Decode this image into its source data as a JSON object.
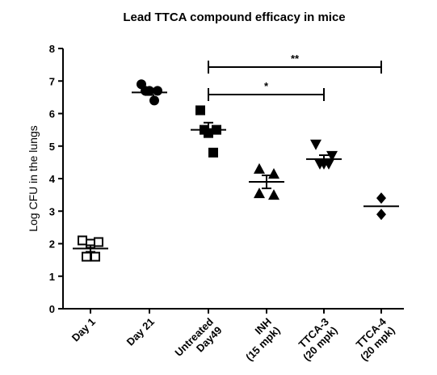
{
  "chart_data": {
    "type": "dot",
    "title": "Lead TTCA compound efficacy in mice",
    "y_label": "Log CFU in the lungs",
    "categories": [
      "Day 1",
      "Day 21",
      "Untreated\nDay49",
      "INH\n(15 mpk)",
      "TTCA-3\n(20 mpk)",
      "TTCA-4\n(20 mpk)"
    ],
    "groups": [
      {
        "marker": "square-open",
        "values": [
          2.1,
          2.05,
          2.0,
          1.6,
          1.6
        ],
        "mean": 1.85,
        "sem": 0.1
      },
      {
        "marker": "circle",
        "values": [
          6.9,
          6.7,
          6.7,
          6.7,
          6.4
        ],
        "mean": 6.65,
        "sem": 0.08
      },
      {
        "marker": "square",
        "values": [
          6.1,
          5.5,
          5.4,
          5.5,
          4.8
        ],
        "mean": 5.5,
        "sem": 0.22
      },
      {
        "marker": "triangle-up",
        "values": [
          4.3,
          4.15,
          3.55,
          3.5
        ],
        "mean": 3.9,
        "sem": 0.2
      },
      {
        "marker": "triangle-down",
        "values": [
          5.05,
          4.7,
          4.45,
          4.45,
          4.45
        ],
        "mean": 4.6,
        "sem": 0.12
      },
      {
        "marker": "diamond",
        "values": [
          3.4,
          2.9
        ],
        "mean": 3.15,
        "sem": null
      }
    ],
    "color": "#000000",
    "ylim": [
      0,
      8
    ],
    "yticks": [
      0,
      1,
      2,
      3,
      4,
      5,
      6,
      7,
      8
    ],
    "annotations": [
      {
        "text": "**"
      },
      {
        "text": "*"
      }
    ]
  }
}
